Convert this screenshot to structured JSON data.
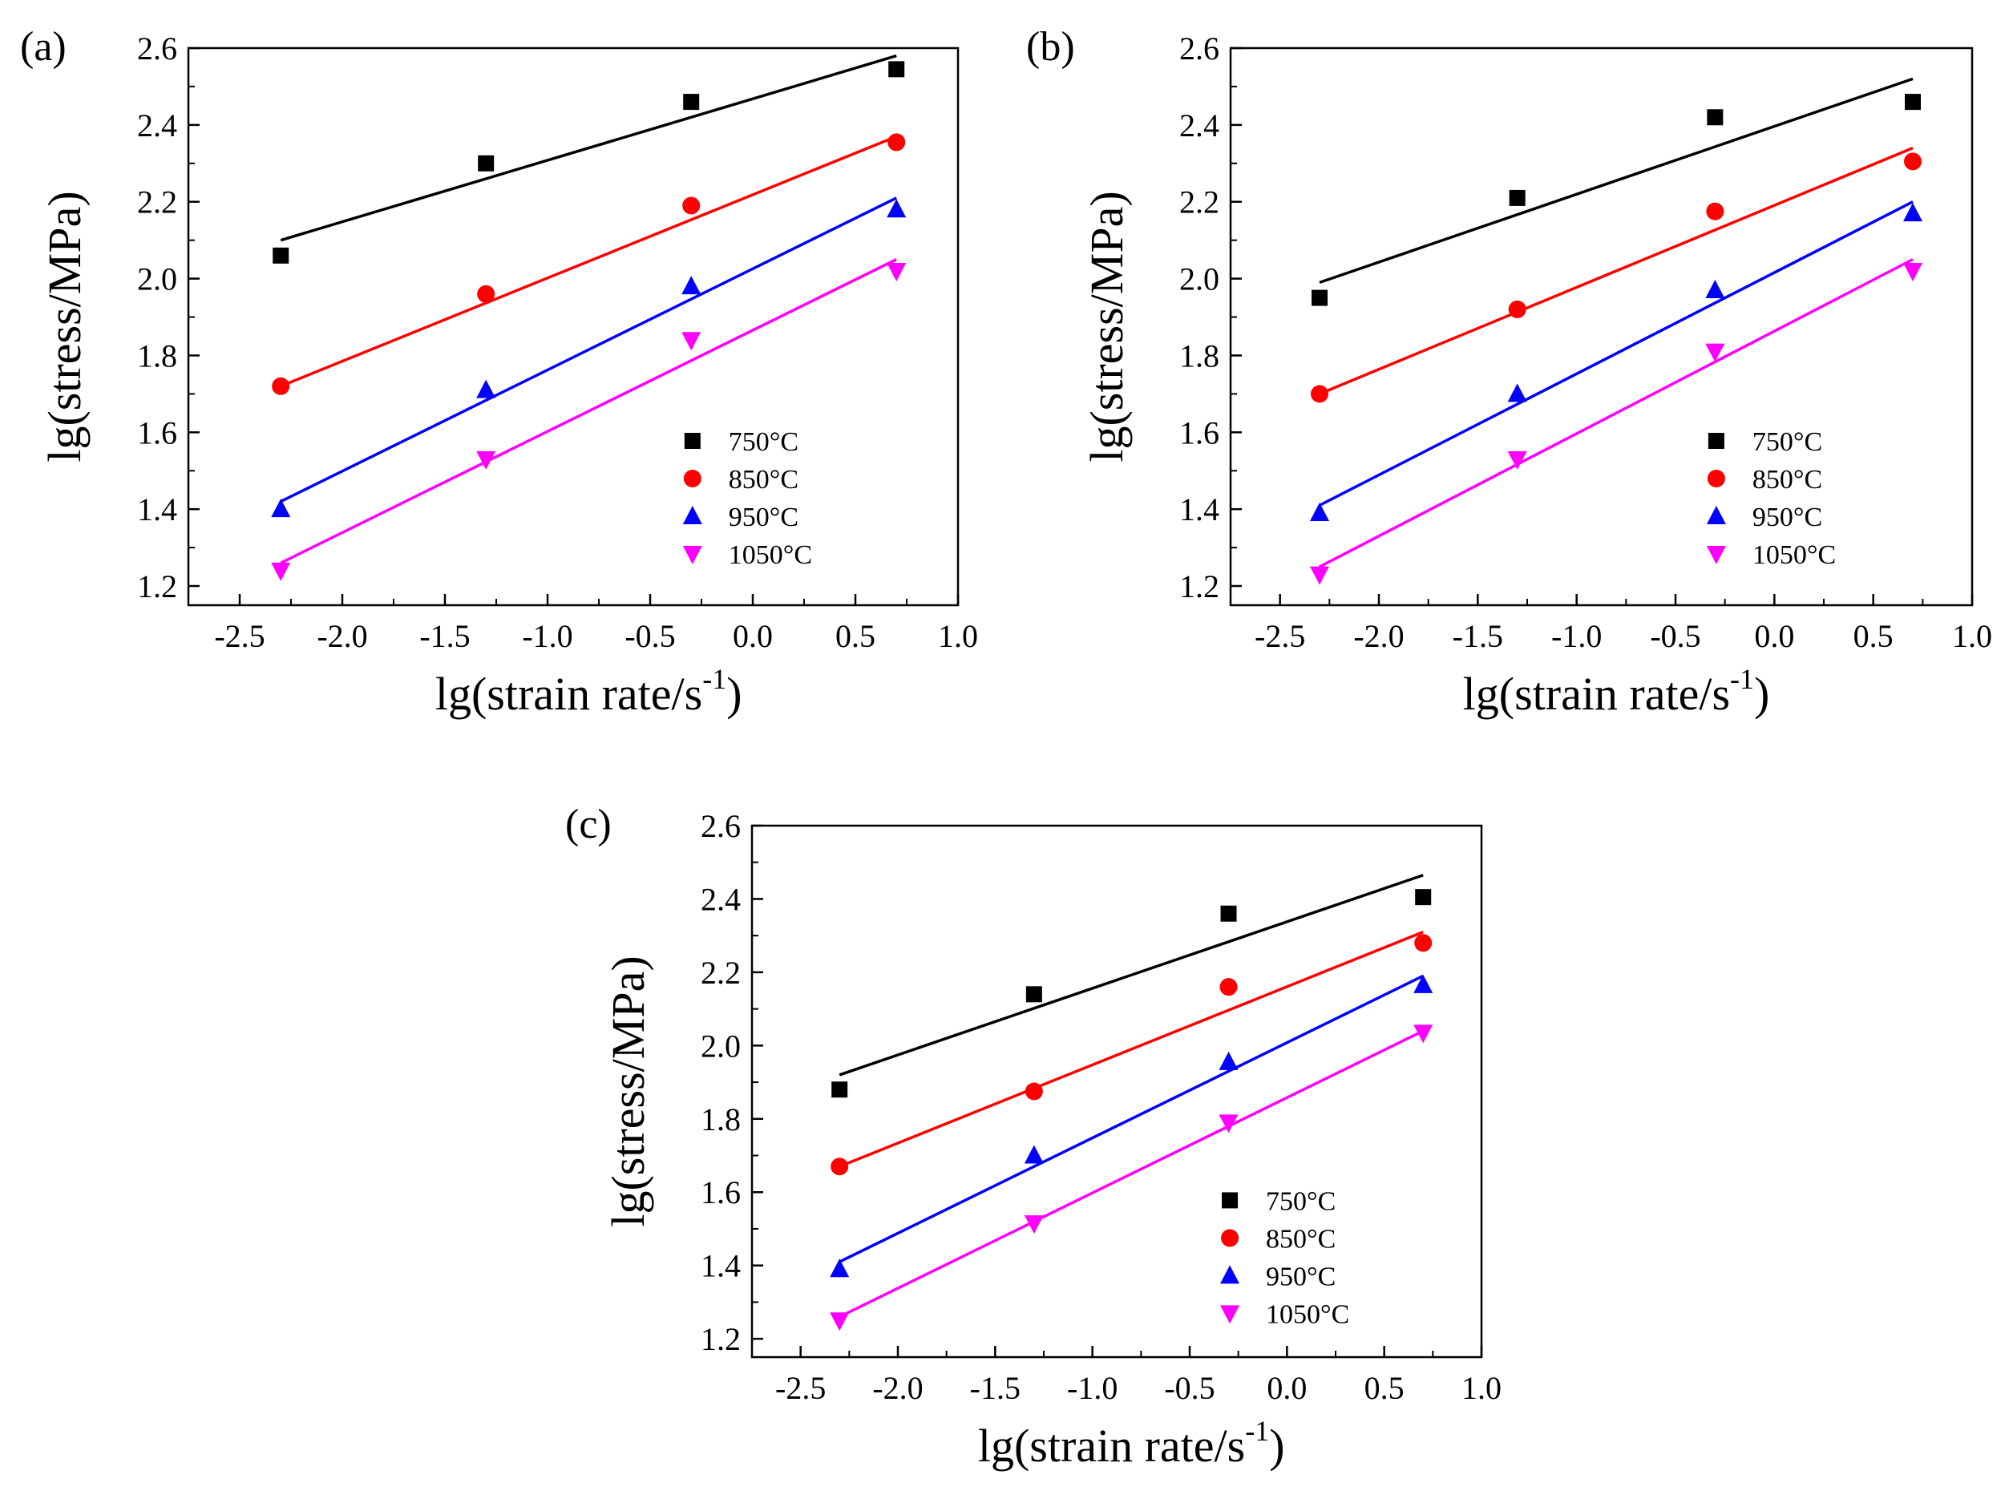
{
  "chart_data": [
    {
      "type": "scatter",
      "panel_label": "(a)",
      "xlabel": "lg(strain rate/s",
      "xlabel_sup": "-1",
      "xlabel_close": ")",
      "ylabel": "lg(stress/MPa)",
      "xlim": [
        -2.75,
        1.0
      ],
      "ylim": [
        1.15,
        2.6
      ],
      "xticks": [
        "-2.5",
        "-2.0",
        "-1.5",
        "-1.0",
        "-0.5",
        "0.0",
        "0.5",
        "1.0"
      ],
      "xtick_values": [
        -2.5,
        -2.0,
        -1.5,
        -1.0,
        -0.5,
        0.0,
        0.5,
        1.0
      ],
      "yticks": [
        "1.2",
        "1.4",
        "1.6",
        "1.8",
        "2.0",
        "2.2",
        "2.4",
        "2.6"
      ],
      "ytick_values": [
        1.2,
        1.4,
        1.6,
        1.8,
        2.0,
        2.2,
        2.4,
        2.6
      ],
      "legend_position": "bottom-right",
      "series": [
        {
          "name": "750°C",
          "marker": "square",
          "color": "#000000",
          "x": [
            -2.3,
            -1.3,
            -0.3,
            0.7
          ],
          "y": [
            2.06,
            2.3,
            2.46,
            2.545
          ],
          "fit": [
            [
              -2.3,
              2.1
            ],
            [
              0.7,
              2.58
            ]
          ]
        },
        {
          "name": "850°C",
          "marker": "circle",
          "color": "#ff0000",
          "x": [
            -2.3,
            -1.3,
            -0.3,
            0.7
          ],
          "y": [
            1.72,
            1.96,
            2.19,
            2.355
          ],
          "fit": [
            [
              -2.3,
              1.72
            ],
            [
              0.7,
              2.37
            ]
          ]
        },
        {
          "name": "950°C",
          "marker": "triangle-up",
          "color": "#0000ff",
          "x": [
            -2.3,
            -1.3,
            -0.3,
            0.7
          ],
          "y": [
            1.4,
            1.71,
            1.98,
            2.18
          ],
          "fit": [
            [
              -2.3,
              1.42
            ],
            [
              0.7,
              2.21
            ]
          ]
        },
        {
          "name": "1050°C",
          "marker": "triangle-down",
          "color": "#ff00ff",
          "x": [
            -2.3,
            -1.3,
            -0.3,
            0.7
          ],
          "y": [
            1.24,
            1.53,
            1.84,
            2.02
          ],
          "fit": [
            [
              -2.3,
              1.26
            ],
            [
              0.7,
              2.05
            ]
          ]
        }
      ]
    },
    {
      "type": "scatter",
      "panel_label": "(b)",
      "xlabel": "lg(strain rate/s",
      "xlabel_sup": "-1",
      "xlabel_close": ")",
      "ylabel": "lg(stress/MPa)",
      "xlim": [
        -2.75,
        1.0
      ],
      "ylim": [
        1.15,
        2.6
      ],
      "xticks": [
        "-2.5",
        "-2.0",
        "-1.5",
        "-1.0",
        "-0.5",
        "0.0",
        "0.5",
        "1.0"
      ],
      "xtick_values": [
        -2.5,
        -2.0,
        -1.5,
        -1.0,
        -0.5,
        0.0,
        0.5,
        1.0
      ],
      "yticks": [
        "1.2",
        "1.4",
        "1.6",
        "1.8",
        "2.0",
        "2.2",
        "2.4",
        "2.6"
      ],
      "ytick_values": [
        1.2,
        1.4,
        1.6,
        1.8,
        2.0,
        2.2,
        2.4,
        2.6
      ],
      "legend_position": "bottom-right",
      "series": [
        {
          "name": "750°C",
          "marker": "square",
          "color": "#000000",
          "x": [
            -2.3,
            -1.3,
            -0.3,
            0.7
          ],
          "y": [
            1.95,
            2.21,
            2.42,
            2.46
          ],
          "fit": [
            [
              -2.3,
              1.99
            ],
            [
              0.7,
              2.52
            ]
          ]
        },
        {
          "name": "850°C",
          "marker": "circle",
          "color": "#ff0000",
          "x": [
            -2.3,
            -1.3,
            -0.3,
            0.7
          ],
          "y": [
            1.7,
            1.92,
            2.175,
            2.305
          ],
          "fit": [
            [
              -2.3,
              1.7
            ],
            [
              0.7,
              2.34
            ]
          ]
        },
        {
          "name": "950°C",
          "marker": "triangle-up",
          "color": "#0000ff",
          "x": [
            -2.3,
            -1.3,
            -0.3,
            0.7
          ],
          "y": [
            1.39,
            1.7,
            1.97,
            2.17
          ],
          "fit": [
            [
              -2.3,
              1.41
            ],
            [
              0.7,
              2.2
            ]
          ]
        },
        {
          "name": "1050°C",
          "marker": "triangle-down",
          "color": "#ff00ff",
          "x": [
            -2.3,
            -1.3,
            -0.3,
            0.7
          ],
          "y": [
            1.23,
            1.53,
            1.81,
            2.02
          ],
          "fit": [
            [
              -2.3,
              1.25
            ],
            [
              0.7,
              2.05
            ]
          ]
        }
      ]
    },
    {
      "type": "scatter",
      "panel_label": "(c)",
      "xlabel": "lg(strain rate/s",
      "xlabel_sup": "-1",
      "xlabel_close": ")",
      "ylabel": "lg(stress/MPa)",
      "xlim": [
        -2.75,
        1.0
      ],
      "ylim": [
        1.15,
        2.6
      ],
      "xticks": [
        "-2.5",
        "-2.0",
        "-1.5",
        "-1.0",
        "-0.5",
        "0.0",
        "0.5",
        "1.0"
      ],
      "xtick_values": [
        -2.5,
        -2.0,
        -1.5,
        -1.0,
        -0.5,
        0.0,
        0.5,
        1.0
      ],
      "yticks": [
        "1.2",
        "1.4",
        "1.6",
        "1.8",
        "2.0",
        "2.2",
        "2.4",
        "2.6"
      ],
      "ytick_values": [
        1.2,
        1.4,
        1.6,
        1.8,
        2.0,
        2.2,
        2.4,
        2.6
      ],
      "legend_position": "bottom-right",
      "series": [
        {
          "name": "750°C",
          "marker": "square",
          "color": "#000000",
          "x": [
            -2.3,
            -1.3,
            -0.3,
            0.7
          ],
          "y": [
            1.88,
            2.14,
            2.36,
            2.405
          ],
          "fit": [
            [
              -2.3,
              1.92
            ],
            [
              0.7,
              2.465
            ]
          ]
        },
        {
          "name": "850°C",
          "marker": "circle",
          "color": "#ff0000",
          "x": [
            -2.3,
            -1.3,
            -0.3,
            0.7
          ],
          "y": [
            1.67,
            1.875,
            2.16,
            2.28
          ],
          "fit": [
            [
              -2.3,
              1.67
            ],
            [
              0.7,
              2.31
            ]
          ]
        },
        {
          "name": "950°C",
          "marker": "triangle-up",
          "color": "#0000ff",
          "x": [
            -2.3,
            -1.3,
            -0.3,
            0.7
          ],
          "y": [
            1.39,
            1.7,
            1.955,
            2.165
          ],
          "fit": [
            [
              -2.3,
              1.41
            ],
            [
              0.7,
              2.19
            ]
          ]
        },
        {
          "name": "1050°C",
          "marker": "triangle-down",
          "color": "#ff00ff",
          "x": [
            -2.3,
            -1.3,
            -0.3,
            0.7
          ],
          "y": [
            1.25,
            1.515,
            1.79,
            2.035
          ],
          "fit": [
            [
              -2.3,
              1.26
            ],
            [
              0.7,
              2.04
            ]
          ]
        }
      ]
    }
  ]
}
